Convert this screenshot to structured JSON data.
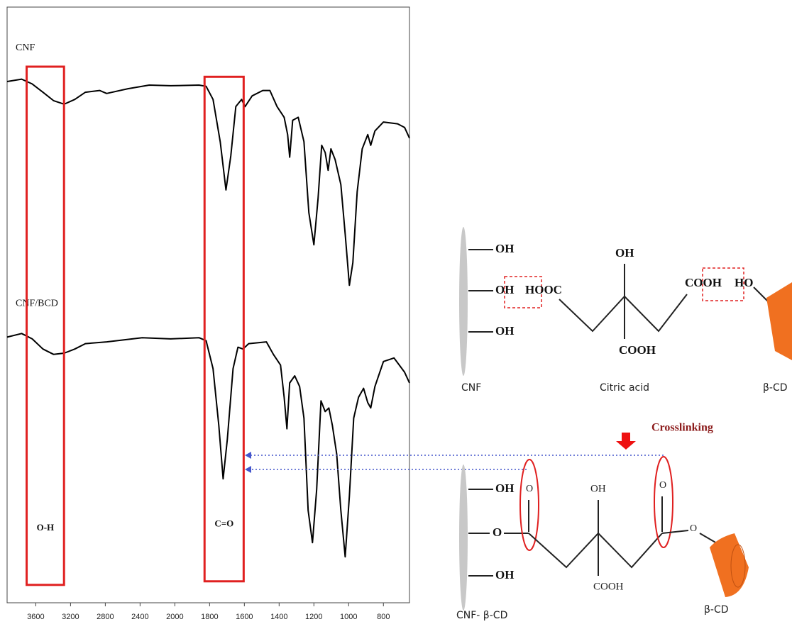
{
  "chart_data": {
    "type": "line",
    "xlim": [
      3930,
      650
    ],
    "ylim": [
      0,
      100
    ],
    "xticks": [
      3600,
      3200,
      2800,
      2400,
      2000,
      1800,
      1600,
      1400,
      1200,
      1000,
      800
    ],
    "series": [
      {
        "name": "CNF",
        "color": "#000000",
        "x": [
          3930,
          3763,
          3641,
          3518,
          3396,
          3273,
          3151,
          3029,
          2865,
          2784,
          2539,
          2294,
          2049,
          1861,
          1820,
          1780,
          1739,
          1706,
          1678,
          1649,
          1616,
          1596,
          1555,
          1494,
          1453,
          1412,
          1371,
          1351,
          1339,
          1322,
          1290,
          1257,
          1229,
          1200,
          1176,
          1155,
          1135,
          1118,
          1102,
          1078,
          1045,
          1020,
          996,
          976,
          951,
          922,
          890,
          873,
          849,
          800,
          718,
          678,
          650
        ],
        "values": [
          87.5,
          87.9,
          87.1,
          85.7,
          84.3,
          83.7,
          84.5,
          85.7,
          86.0,
          85.5,
          86.3,
          86.9,
          86.8,
          86.9,
          86.7,
          84.5,
          77.4,
          69.3,
          75.0,
          83.3,
          84.5,
          83.3,
          85.1,
          86.0,
          86.0,
          83.3,
          81.5,
          78.6,
          74.8,
          81.0,
          81.5,
          77.4,
          65.5,
          60.1,
          67.9,
          76.8,
          75.6,
          72.6,
          76.2,
          74.4,
          70.2,
          61.9,
          53.3,
          57.1,
          69.0,
          76.2,
          78.6,
          76.8,
          79.2,
          80.7,
          80.4,
          79.8,
          78.0
        ]
      },
      {
        "name": "CNF/BCD",
        "color": "#000000",
        "x": [
          3930,
          3763,
          3641,
          3518,
          3396,
          3273,
          3151,
          3029,
          2784,
          2375,
          2049,
          1861,
          1820,
          1780,
          1747,
          1722,
          1698,
          1665,
          1637,
          1608,
          1575,
          1473,
          1433,
          1392,
          1371,
          1355,
          1339,
          1310,
          1282,
          1257,
          1233,
          1208,
          1184,
          1159,
          1135,
          1114,
          1094,
          1069,
          1045,
          1020,
          996,
          971,
          943,
          914,
          890,
          873,
          849,
          800,
          739,
          678,
          650
        ],
        "values": [
          44.6,
          45.2,
          44.3,
          42.6,
          41.7,
          41.9,
          42.6,
          43.5,
          43.8,
          44.5,
          44.3,
          44.5,
          44.0,
          39.3,
          29.8,
          20.8,
          27.4,
          39.3,
          42.9,
          42.6,
          43.5,
          43.8,
          41.7,
          39.9,
          34.5,
          29.2,
          36.9,
          38.1,
          36.3,
          31.0,
          15.5,
          10.1,
          19.0,
          33.9,
          32.1,
          32.7,
          29.8,
          25.0,
          15.5,
          7.7,
          17.9,
          31.0,
          34.5,
          36.0,
          33.6,
          32.7,
          36.3,
          40.5,
          41.1,
          38.7,
          36.9
        ]
      }
    ],
    "annotations": [
      {
        "text": "O-H",
        "x": [
          3705,
          3275
        ],
        "y": [
          3,
          90
        ],
        "color": "#e02020"
      },
      {
        "text": "C=O",
        "x": [
          1829,
          1604
        ],
        "y": [
          3.6,
          88.3
        ],
        "color": "#e02020"
      }
    ]
  },
  "diagram": {
    "top": {
      "cnf_groups": [
        "OH",
        "OH",
        "OH"
      ],
      "hooc": "HOOC",
      "center_oh": "OH",
      "center_cooh": "COOH",
      "right_cooh": "COOH",
      "ho": "HO",
      "captions": [
        "CNF",
        "Citric acid",
        "β-CD"
      ]
    },
    "step": "Crosslinking",
    "bottom": {
      "cnf_groups": [
        "OH",
        "O",
        "OH"
      ],
      "carbonyl_left": "O",
      "center_oh": "OH",
      "center_cooh": "COOH",
      "carbonyl_right": "O",
      "ester_o": "O",
      "captions": [
        "CNF- β-CD",
        "β-CD"
      ]
    }
  }
}
